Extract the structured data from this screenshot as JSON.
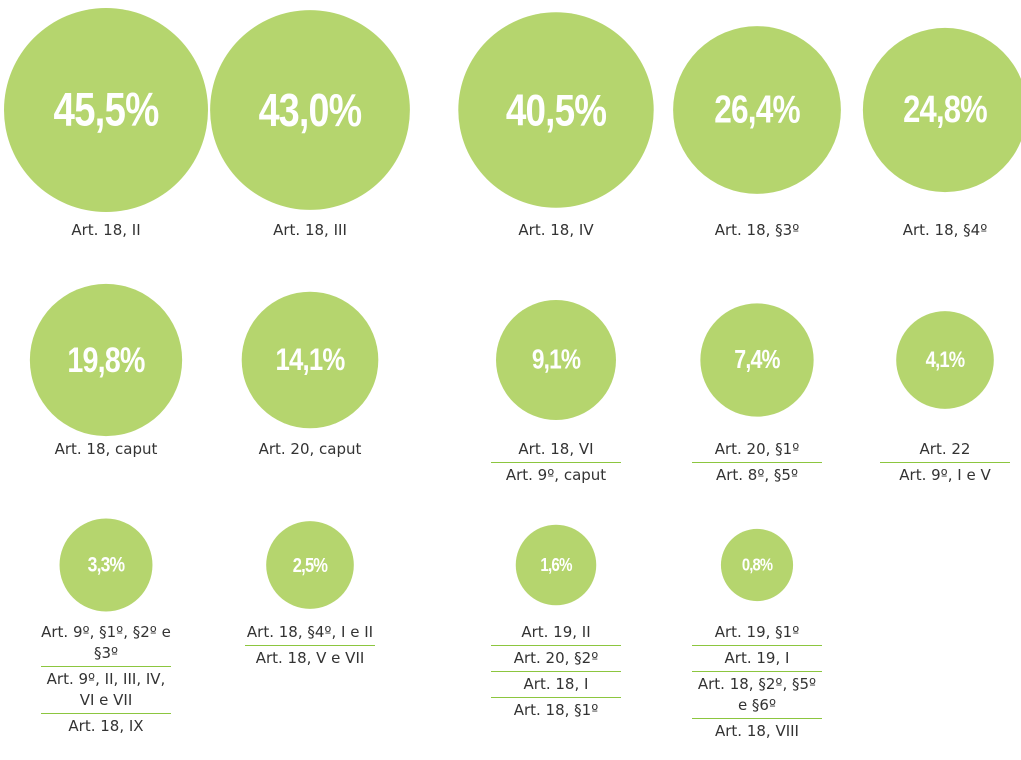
{
  "chart_data": {
    "type": "bubble",
    "color": "#b5d56e",
    "values": [
      45.5,
      43.0,
      40.5,
      26.4,
      24.8,
      19.8,
      14.1,
      9.1,
      7.4,
      4.1,
      3.3,
      2.5,
      1.6,
      0.8
    ],
    "value_labels": [
      "45,5%",
      "43,0%",
      "40,5%",
      "26,4%",
      "24,8%",
      "19,8%",
      "14,1%",
      "9,1%",
      "7,4%",
      "4,1%",
      "3,3%",
      "2,5%",
      "1,6%",
      "0,8%"
    ],
    "categories": [
      [
        "Art. 18, II"
      ],
      [
        "Art. 18, III"
      ],
      [
        "Art. 18, IV"
      ],
      [
        "Art. 18, §3º"
      ],
      [
        "Art. 18, §4º"
      ],
      [
        "Art. 18, caput"
      ],
      [
        "Art. 20, caput"
      ],
      [
        "Art. 18, VI",
        "Art. 9º, caput"
      ],
      [
        "Art. 20, §1º",
        "Art. 8º, §5º"
      ],
      [
        "Art. 22",
        "Art. 9º, I e V"
      ],
      [
        "Art. 9º, §1º, §2º e §3º",
        "Art. 9º, II, III, IV, VI e VII",
        "Art. 18, IX"
      ],
      [
        "Art. 18, §4º, I e II",
        "Art. 18, V e VII"
      ],
      [
        "Art. 19, II",
        "Art. 20, §2º",
        "Art. 18, I",
        "Art. 18, §1º"
      ],
      [
        "Art. 19, §1º",
        "Art. 19, I",
        "Art. 18, §2º, §5º e §6º",
        "Art. 18, VIII"
      ]
    ]
  }
}
